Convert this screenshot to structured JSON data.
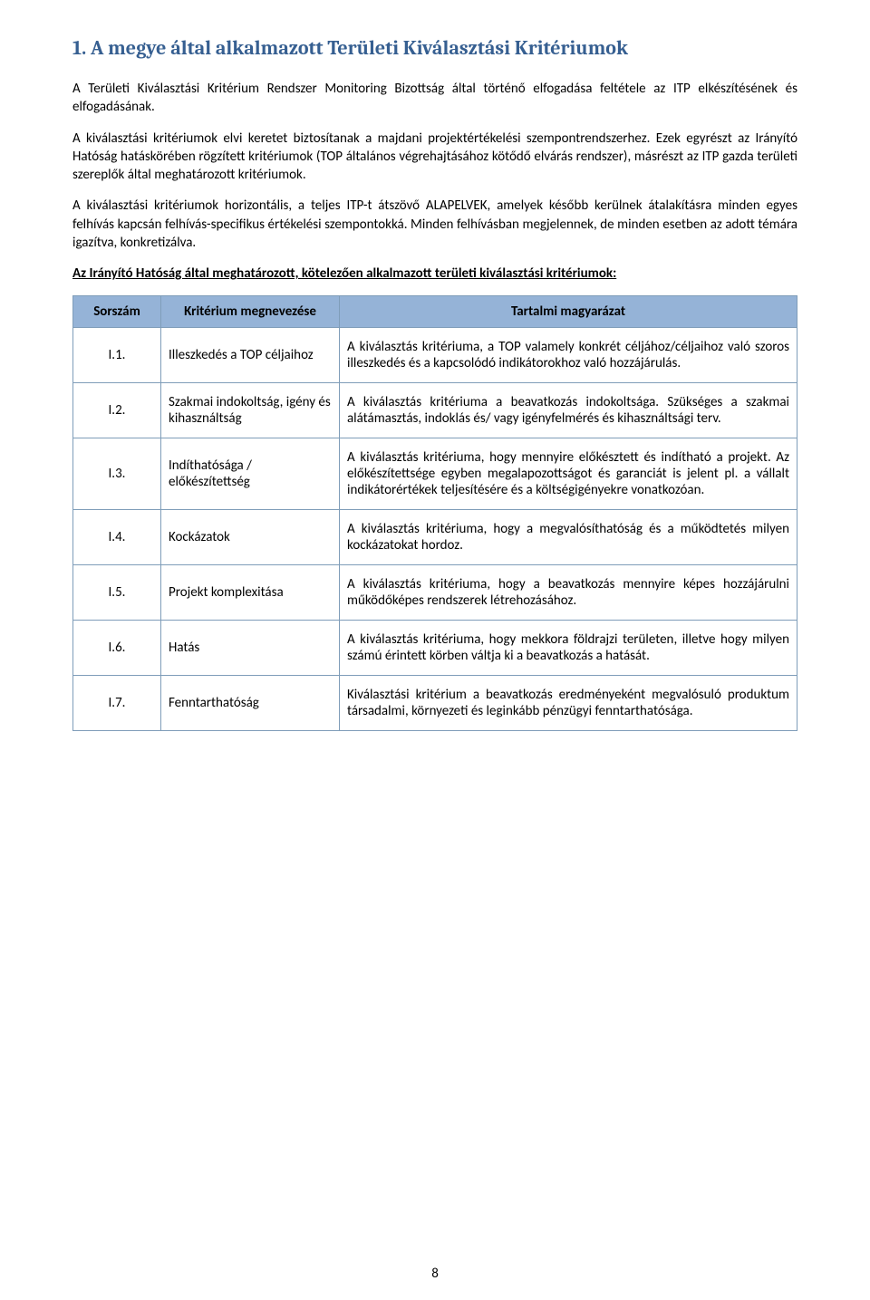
{
  "heading": "1.  A megye által alkalmazott Területi Kiválasztási Kritériumok",
  "paragraphs": {
    "p1": "A Területi Kiválasztási Kritérium Rendszer Monitoring Bizottság által történő elfogadása feltétele az ITP elkészítésének és elfogadásának.",
    "p2": "A kiválasztási kritériumok elvi keretet biztosítanak a majdani projektértékelési szempontrendszerhez. Ezek egyrészt az Irányító Hatóság hatáskörében rögzített kritériumok (TOP általános végrehajtásához kötődő elvárás rendszer), másrészt az ITP gazda területi szereplők által meghatározott kritériumok.",
    "p3": "A kiválasztási kritériumok horizontális, a teljes ITP-t átszövő ALAPELVEK, amelyek később kerülnek átalakításra minden egyes felhívás kapcsán felhívás-specifikus értékelési szempontokká. Minden felhívásban megjelennek, de minden esetben az adott témára igazítva, konkretizálva.",
    "p4": "Az Irányító Hatóság által meghatározott, kötelezően alkalmazott területi kiválasztási kritériumok:"
  },
  "table": {
    "header": {
      "col1": "Sorszám",
      "col2": "Kritérium megnevezése",
      "col3": "Tartalmi magyarázat"
    },
    "rows": [
      {
        "idx": "I.1.",
        "name": "Illeszkedés a TOP céljaihoz",
        "desc": "A kiválasztás kritériuma, a TOP valamely konkrét céljához/céljaihoz való szoros illeszkedés és a kapcsolódó indikátorokhoz való hozzájárulás."
      },
      {
        "idx": "I.2.",
        "name": "Szakmai indokoltság, igény és kihasználtság",
        "desc": "A kiválasztás kritériuma a beavatkozás indokoltsága. Szükséges a szakmai alátámasztás, indoklás és/ vagy igényfelmérés és kihasználtsági terv."
      },
      {
        "idx": "I.3.",
        "name": "Indíthatósága / előkészítettség",
        "desc": "A kiválasztás kritériuma, hogy mennyire előkésztett és indítható a projekt. Az előkészítettsége egyben megalapozottságot és garanciát is jelent pl. a vállalt indikátorértékek teljesítésére és a költségigényekre vonatkozóan."
      },
      {
        "idx": "I.4.",
        "name": "Kockázatok",
        "desc": "A kiválasztás kritériuma, hogy a megvalósíthatóság és a működtetés milyen kockázatokat hordoz."
      },
      {
        "idx": "I.5.",
        "name": "Projekt komplexitása",
        "desc": "A kiválasztás kritériuma, hogy a beavatkozás mennyire képes hozzájárulni működőképes rendszerek létrehozásához."
      },
      {
        "idx": "I.6.",
        "name": "Hatás",
        "desc": "A kiválasztás kritériuma, hogy mekkora földrajzi területen, illetve hogy milyen számú érintett körben váltja ki a beavatkozás a hatását."
      },
      {
        "idx": "I.7.",
        "name": "Fenntarthatóság",
        "desc": "Kiválasztási kritérium a beavatkozás eredményeként megvalósuló produktum társadalmi, környezeti és leginkább pénzügyi fenntarthatósága."
      }
    ]
  },
  "page_number": "8",
  "colors": {
    "heading": "#365f91",
    "table_header_bg": "#95b3d7",
    "table_border": "#7f9db9",
    "text": "#000000",
    "background": "#ffffff"
  },
  "fonts": {
    "heading_family": "Cambria",
    "body_family": "Calibri",
    "heading_size_pt": 16,
    "body_size_pt": 11
  }
}
